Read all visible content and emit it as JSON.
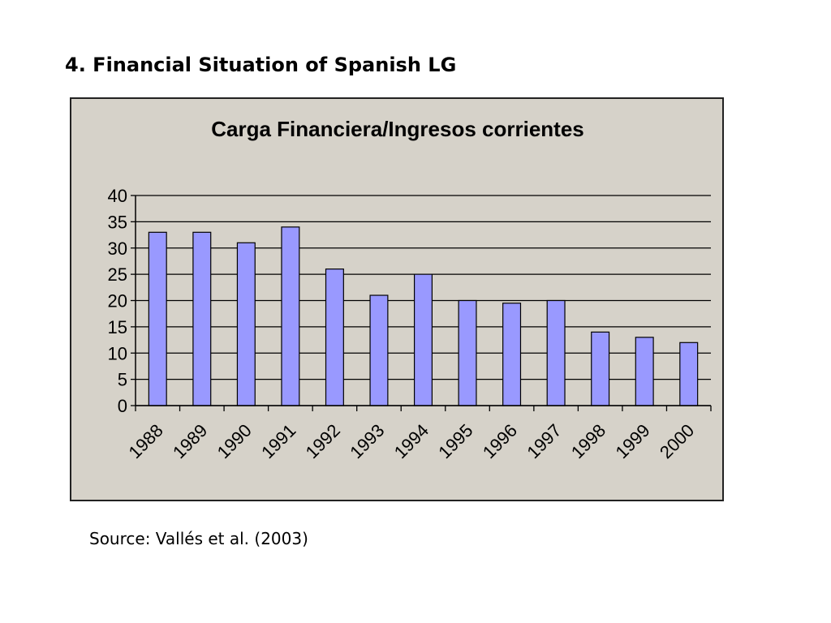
{
  "slide": {
    "title": "4. Financial Situation of Spanish LG",
    "source": "Source: Vallés et al. (2003)"
  },
  "chart_data": {
    "type": "bar",
    "title": "Carga Financiera/Ingresos corrientes",
    "xlabel": "",
    "ylabel": "",
    "categories": [
      "1988",
      "1989",
      "1990",
      "1991",
      "1992",
      "1993",
      "1994",
      "1995",
      "1996",
      "1997",
      "1998",
      "1999",
      "2000"
    ],
    "values": [
      33,
      33,
      31,
      34,
      26,
      21,
      25,
      20,
      19.5,
      20,
      14,
      13,
      12
    ],
    "ylim": [
      0,
      40
    ],
    "yticks": [
      0,
      5,
      10,
      15,
      20,
      25,
      30,
      35,
      40
    ],
    "grid": true,
    "legend": "none",
    "bar_color": "#9999ff",
    "background_color": "#d6d2c9"
  }
}
